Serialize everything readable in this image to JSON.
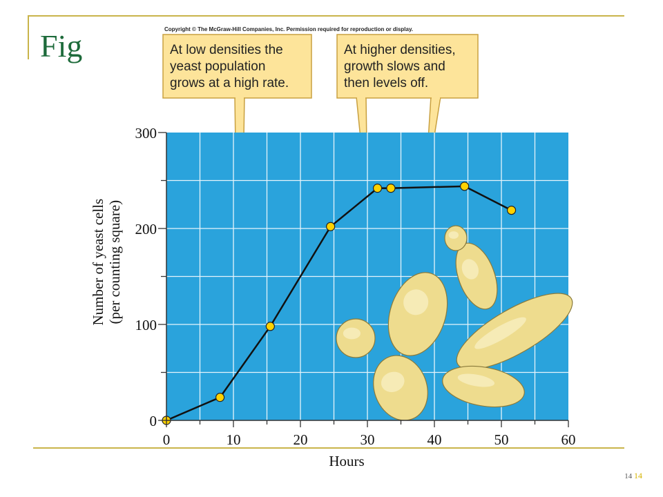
{
  "slide": {
    "title": "Fig",
    "copyright": "Copyright © The McGraw-Hill Companies, Inc. Permission required for reproduction or display.",
    "slide_number": "14",
    "slide_number_accent": "14"
  },
  "colors": {
    "plot_background": "#2aa3dc",
    "grid": "#e6f4fb",
    "line": "#111111",
    "marker_fill": "#ffd200",
    "callout_fill": "#fde49a",
    "callout_border": "#c8a040",
    "title": "#1e6b3b",
    "frame": "#c9b44a",
    "yeast_fill": "#eedc8e"
  },
  "callouts": [
    {
      "lines": [
        "At low densities the",
        "yeast population",
        "grows at a high rate."
      ]
    },
    {
      "lines": [
        "At higher densities,",
        "growth slows and",
        "then levels off."
      ]
    }
  ],
  "chart_data": {
    "type": "line",
    "title": "",
    "xlabel": "Hours",
    "ylabel_lines": [
      "Number of yeast cells",
      "(per counting square)"
    ],
    "xlim": [
      0,
      60
    ],
    "ylim": [
      0,
      300
    ],
    "x_ticks": [
      0,
      10,
      20,
      30,
      40,
      50,
      60
    ],
    "y_ticks": [
      0,
      100,
      200,
      300
    ],
    "grid": true,
    "series": [
      {
        "x": [
          0,
          8,
          15.5,
          24.5,
          31.5,
          33.5,
          44.5,
          51.5
        ],
        "y": [
          0,
          24,
          98,
          202,
          242,
          242,
          244,
          219
        ]
      }
    ],
    "illustration": "yeast-cells"
  }
}
